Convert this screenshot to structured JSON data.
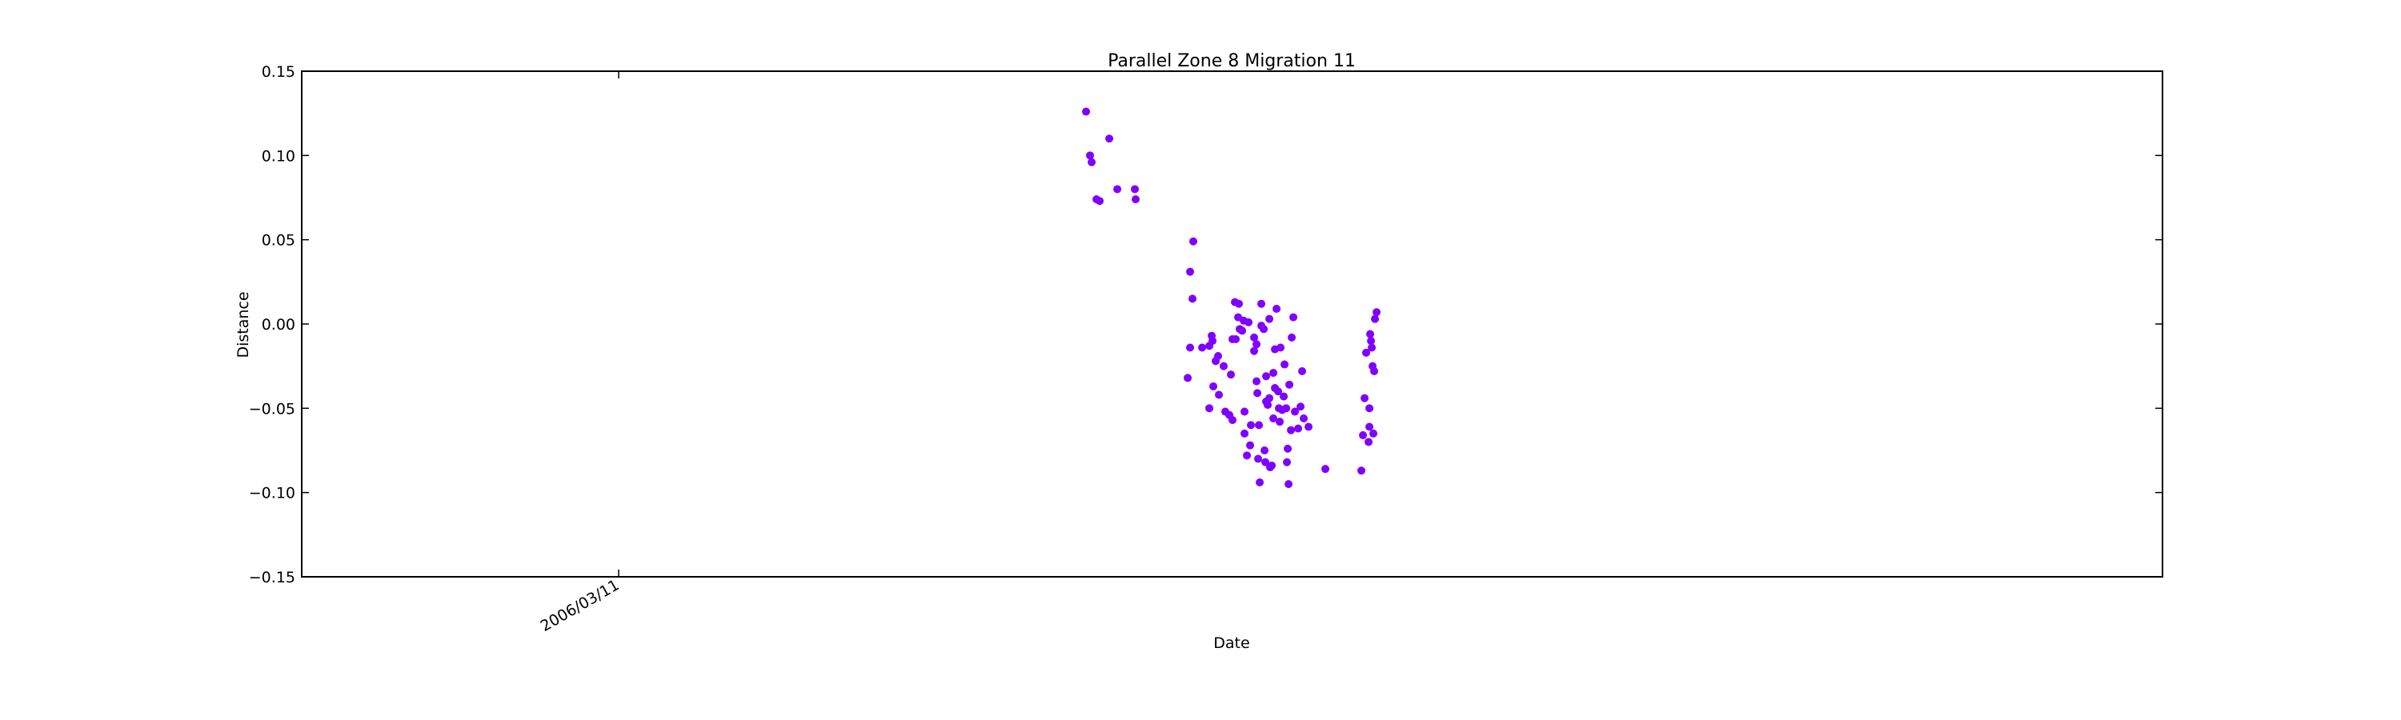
{
  "chart_data": {
    "type": "scatter",
    "title": "Parallel Zone 8 Migration 11",
    "xlabel": "Date",
    "ylabel": "Distance",
    "x_ticks": [
      "2006/03/11"
    ],
    "y_ticks": [
      "0.15",
      "0.10",
      "0.05",
      "0.00",
      "−0.05",
      "−0.10",
      "−0.15"
    ],
    "ylim": [
      -0.15,
      0.15
    ],
    "grid": false,
    "legend": "none",
    "colors": {
      "marker": "#7f00ff"
    },
    "series": [
      {
        "points": [
          [
            1357,
            0.126
          ],
          [
            1362,
            0.1
          ],
          [
            1364,
            0.096
          ],
          [
            1370,
            0.074
          ],
          [
            1374,
            0.073
          ],
          [
            1386,
            0.11
          ],
          [
            1396,
            0.08
          ],
          [
            1418,
            0.08
          ],
          [
            1419,
            0.074
          ],
          [
            1487,
            0.031
          ],
          [
            1491,
            0.049
          ],
          [
            1490,
            0.015
          ],
          [
            1484,
            -0.032
          ],
          [
            1487,
            -0.014
          ],
          [
            1502,
            -0.014
          ],
          [
            1511,
            -0.013
          ],
          [
            1514,
            -0.007
          ],
          [
            1515,
            -0.01
          ],
          [
            1516,
            -0.037
          ],
          [
            1519,
            -0.022
          ],
          [
            1522,
            -0.019
          ],
          [
            1523,
            -0.042
          ],
          [
            1529,
            -0.025
          ],
          [
            1511,
            -0.05
          ],
          [
            1531,
            -0.052
          ],
          [
            1536,
            -0.054
          ],
          [
            1540,
            -0.057
          ],
          [
            1538,
            -0.03
          ],
          [
            1540,
            -0.009
          ],
          [
            1544,
            -0.009
          ],
          [
            1543,
            0.013
          ],
          [
            1548,
            0.012
          ],
          [
            1547,
            0.004
          ],
          [
            1549,
            -0.003
          ],
          [
            1552,
            -0.004
          ],
          [
            1554,
            0.002
          ],
          [
            1560,
            0.001
          ],
          [
            1555,
            -0.052
          ],
          [
            1555,
            -0.065
          ],
          [
            1558,
            -0.078
          ],
          [
            1562,
            -0.072
          ],
          [
            1563,
            -0.06
          ],
          [
            1567,
            -0.008
          ],
          [
            1567,
            -0.016
          ],
          [
            1570,
            -0.012
          ],
          [
            1570,
            -0.034
          ],
          [
            1571,
            -0.041
          ],
          [
            1573,
            -0.06
          ],
          [
            1572,
            -0.08
          ],
          [
            1574,
            -0.094
          ],
          [
            1576,
            0.012
          ],
          [
            1576,
            -0.001
          ],
          [
            1579,
            -0.003
          ],
          [
            1580,
            -0.075
          ],
          [
            1581,
            -0.082
          ],
          [
            1582,
            -0.046
          ],
          [
            1582,
            -0.031
          ],
          [
            1584,
            -0.048
          ],
          [
            1586,
            0.003
          ],
          [
            1586,
            -0.044
          ],
          [
            1587,
            -0.085
          ],
          [
            1589,
            -0.084
          ],
          [
            1591,
            -0.029
          ],
          [
            1591,
            -0.056
          ],
          [
            1593,
            -0.038
          ],
          [
            1593,
            -0.015
          ],
          [
            1595,
            0.009
          ],
          [
            1597,
            -0.04
          ],
          [
            1598,
            -0.05
          ],
          [
            1599,
            -0.058
          ],
          [
            1600,
            -0.014
          ],
          [
            1602,
            -0.051
          ],
          [
            1604,
            -0.043
          ],
          [
            1605,
            -0.024
          ],
          [
            1607,
            -0.05
          ],
          [
            1608,
            -0.082
          ],
          [
            1609,
            -0.074
          ],
          [
            1610,
            -0.095
          ],
          [
            1611,
            -0.036
          ],
          [
            1613,
            -0.063
          ],
          [
            1614,
            -0.008
          ],
          [
            1616,
            0.004
          ],
          [
            1618,
            -0.052
          ],
          [
            1622,
            -0.062
          ],
          [
            1625,
            -0.049
          ],
          [
            1627,
            -0.028
          ],
          [
            1629,
            -0.056
          ],
          [
            1635,
            -0.061
          ],
          [
            1656,
            -0.086
          ],
          [
            1701,
            -0.087
          ],
          [
            1703,
            -0.066
          ],
          [
            1705,
            -0.044
          ],
          [
            1707,
            -0.017
          ],
          [
            1710,
            -0.07
          ],
          [
            1711,
            -0.061
          ],
          [
            1711,
            -0.05
          ],
          [
            1712,
            -0.006
          ],
          [
            1713,
            -0.01
          ],
          [
            1714,
            -0.014
          ],
          [
            1715,
            -0.025
          ],
          [
            1716,
            -0.065
          ],
          [
            1717,
            -0.028
          ],
          [
            1718,
            0.003
          ],
          [
            1720,
            0.007
          ]
        ]
      }
    ]
  }
}
